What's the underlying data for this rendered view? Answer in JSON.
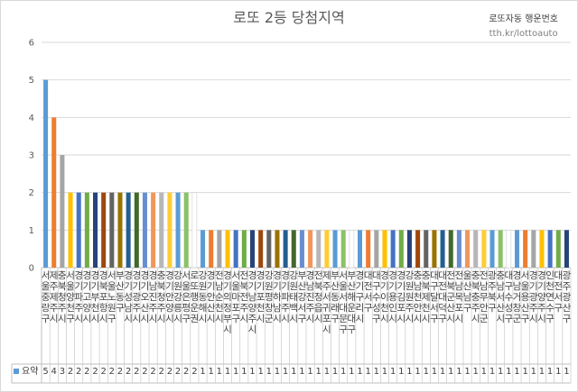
{
  "title": "로또 2등 당첨지역",
  "brand": {
    "name": "로또자동 행운번호",
    "url": "tth.kr/lottoauto"
  },
  "legend_label": "요약",
  "chart_data": {
    "type": "bar",
    "title": "로또 2등 당첨지역",
    "xlabel": "",
    "ylabel": "",
    "ylim": [
      0,
      6
    ],
    "yticks": [
      0,
      1,
      2,
      3,
      4,
      5,
      6
    ],
    "grid": true,
    "legend": "bottom-left (data table)",
    "categories": [
      "서울중랑구",
      "제주제주시",
      "충북청주시",
      "서울양천구",
      "경기파주시",
      "경기고양시",
      "경기부천시",
      "경북포항시",
      "서울노원구",
      "부산동구",
      "경기성남시",
      "경기광주시",
      "경기오산시",
      "경남진주시",
      "충북청주시",
      "경기안양시",
      "강원강릉시",
      "서울은평구",
      "로또행운권",
      "강원동해시",
      "경기안산시",
      "전남순천시",
      "경기의정부시",
      "서울마포구",
      "전북전주시",
      "경기남양주시",
      "경기포천시",
      "강원평창군",
      "경기하남시",
      "경기파주시",
      "강원태백시",
      "부산강서구",
      "경남진주시",
      "전북정읍시",
      "제주서귀포시",
      "부산동래구",
      "서울서대문구",
      "부산해운대구",
      "경기구리시",
      "대전서구",
      "대구수성구",
      "경기이천시",
      "경기용인시",
      "경기김포시",
      "강원원주시",
      "충남천안시",
      "충북제천시",
      "대구달서구",
      "대전대덕구",
      "전북군산시",
      "전남목포시",
      "울산남구",
      "충북충주시",
      "전남무안군",
      "광주북구",
      "충남서산시",
      "대구수성구",
      "경남거창군",
      "서울용산구",
      "경기광주시",
      "경기양주시",
      "인천연수구",
      "대전서구",
      "광주광산구"
    ],
    "cat_labels": [
      "서울중랑구",
      "제주제주시",
      "충북청주시",
      "서울양천구",
      "경기파주시",
      "경기고양시",
      "경기부천시",
      "경북포항시",
      "서울노원구",
      "부산동구",
      "경기성남시",
      "경기광주시",
      "경기오산시",
      "경남진주시",
      "충북청주시",
      "경기안양시",
      "강원강릉시",
      "서울은평구",
      "로또행운권",
      "강원동해시",
      "경기안산시",
      "전남순천시",
      "경기의정부시",
      "서울마포구",
      "전북전주시",
      "경기남양주시",
      "경기포천시",
      "강원평창군",
      "경기하남시",
      "경기파주시",
      "강원태백시",
      "부산강서구",
      "경남진주시",
      "전북정읍시",
      "제주서귀포시",
      "부산동래구",
      "서울서대문구",
      "부산해운대구",
      "경기구리시",
      "대전서구",
      "대구수성구",
      "경기이천시",
      "경기용인시",
      "경기김포시",
      "강원원주시",
      "충남천안시",
      "충북제천시",
      "대구달서구",
      "대전대덕구",
      "전북군산시",
      "전남목포시",
      "울산남구",
      "충북충주시",
      "전남무안군",
      "광주북구",
      "충남서산시",
      "대구수성구",
      "경남거창군",
      "서울용산구",
      "경기광주시",
      "경기양주시",
      "인천연수구",
      "대전서구",
      "광주광산구"
    ],
    "values": [
      5,
      4,
      3,
      2,
      2,
      2,
      2,
      2,
      2,
      2,
      2,
      2,
      2,
      2,
      2,
      2,
      2,
      2,
      2,
      1,
      1,
      1,
      1,
      1,
      1,
      1,
      1,
      1,
      1,
      1,
      1,
      1,
      1,
      1,
      1,
      1,
      1,
      1,
      1,
      1,
      1,
      1,
      1,
      1,
      1,
      1,
      1,
      1,
      1,
      1,
      1,
      1,
      1,
      1,
      1,
      1,
      1,
      1,
      1,
      1,
      1,
      1,
      1,
      1
    ],
    "colors": [
      "#5b9bd5",
      "#ed7d31",
      "#a5a5a5",
      "#ffc000",
      "#4472c4",
      "#70ad47",
      "#264478",
      "#9e480e",
      "#636363",
      "#997300",
      "#255e91",
      "#43682b",
      "#698ed0",
      "#f1975a",
      "#b7b7b7",
      "#ffcd33",
      "#5b9bd5",
      "#8cc168",
      "#ffffff"
    ]
  }
}
